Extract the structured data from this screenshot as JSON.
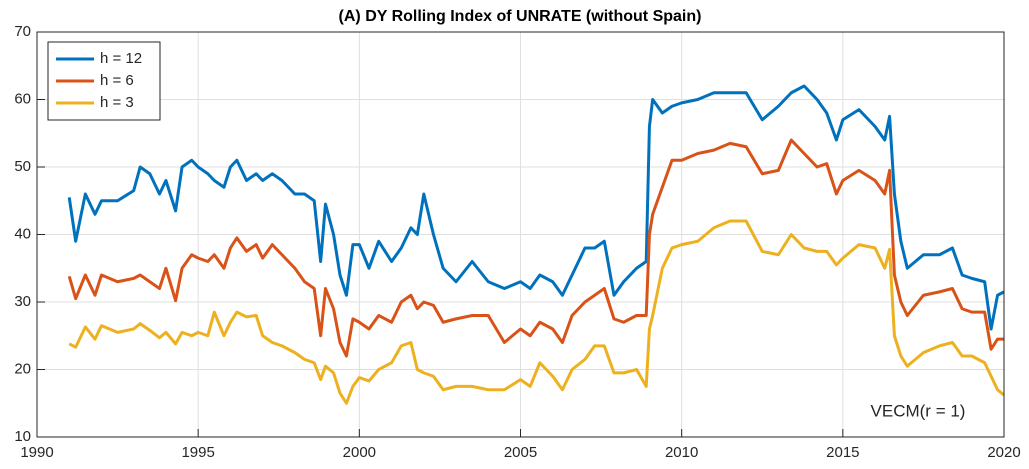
{
  "chart_data": {
    "type": "line",
    "title": "(A) DY Rolling Index of UNRATE (without Spain)",
    "annotation": "VECM(r = 1)",
    "x": [
      1991.0,
      1991.2,
      1991.5,
      1991.8,
      1992.0,
      1992.5,
      1993.0,
      1993.2,
      1993.5,
      1993.8,
      1994.0,
      1994.3,
      1994.5,
      1994.8,
      1995.0,
      1995.3,
      1995.5,
      1995.8,
      1996.0,
      1996.2,
      1996.5,
      1996.8,
      1997.0,
      1997.3,
      1997.6,
      1998.0,
      1998.3,
      1998.6,
      1998.8,
      1998.95,
      1999.2,
      1999.4,
      1999.6,
      1999.8,
      2000.0,
      2000.3,
      2000.6,
      2001.0,
      2001.3,
      2001.6,
      2001.8,
      2002.0,
      2002.3,
      2002.6,
      2003.0,
      2003.5,
      2004.0,
      2004.5,
      2005.0,
      2005.3,
      2005.6,
      2006.0,
      2006.3,
      2006.6,
      2007.0,
      2007.3,
      2007.6,
      2007.9,
      2008.2,
      2008.6,
      2008.9,
      2009.0,
      2009.1,
      2009.4,
      2009.7,
      2010.0,
      2010.5,
      2011.0,
      2011.5,
      2012.0,
      2012.5,
      2013.0,
      2013.4,
      2013.8,
      2014.2,
      2014.5,
      2014.8,
      2015.0,
      2015.5,
      2016.0,
      2016.3,
      2016.45,
      2016.6,
      2016.8,
      2017.0,
      2017.5,
      2018.0,
      2018.4,
      2018.7,
      2019.0,
      2019.4,
      2019.6,
      2019.8,
      2020.0
    ],
    "series": [
      {
        "name": "h = 12",
        "color": "#0072BD",
        "values": [
          45.5,
          39,
          46,
          43,
          45,
          45,
          46.5,
          50,
          49,
          46,
          48,
          43.5,
          50,
          51,
          50,
          49,
          48,
          47,
          50,
          51,
          48,
          49,
          48,
          49,
          48,
          46,
          46,
          45,
          36,
          44.5,
          40,
          34,
          31,
          38.5,
          38.5,
          35,
          39,
          36,
          38,
          41,
          40,
          46,
          40,
          35,
          33,
          36,
          33,
          32,
          33,
          32,
          34,
          33,
          31,
          34,
          38,
          38,
          39,
          31,
          33,
          35,
          36,
          56,
          60,
          58,
          59,
          59.5,
          60,
          61,
          61,
          61,
          57,
          59,
          61,
          62,
          60,
          58,
          54,
          57,
          58.5,
          56,
          54,
          57.5,
          46,
          39,
          35,
          37,
          37,
          38,
          34,
          33.5,
          33,
          26,
          31,
          31.5
        ]
      },
      {
        "name": "h = 6",
        "color": "#D95319",
        "values": [
          33.8,
          30.5,
          34,
          31,
          34,
          33,
          33.5,
          34,
          33,
          32,
          35,
          30.2,
          35,
          37,
          36.5,
          36,
          37,
          35,
          38,
          39.5,
          37.5,
          38.5,
          36.5,
          38.5,
          37,
          35,
          33,
          32,
          25,
          32,
          29,
          24,
          22,
          27.5,
          27,
          26,
          28,
          27,
          30,
          31,
          29,
          30,
          29.5,
          27,
          27.5,
          28,
          28,
          24,
          26,
          25,
          27,
          26,
          24,
          28,
          30,
          31,
          32,
          27.5,
          27,
          28,
          28,
          40,
          43,
          47,
          51,
          51,
          52,
          52.5,
          53.5,
          53,
          49,
          49.5,
          54,
          52,
          50,
          50.5,
          46,
          48,
          49.5,
          48,
          46,
          49.5,
          34,
          30,
          28,
          31,
          31.5,
          32,
          29,
          28.5,
          28.5,
          23,
          24.5,
          24.5
        ]
      },
      {
        "name": "h = 3",
        "color": "#EDB120",
        "values": [
          23.8,
          23.3,
          26.3,
          24.5,
          26.5,
          25.5,
          26,
          26.8,
          25.8,
          24.7,
          25.5,
          23.8,
          25.5,
          25,
          25.5,
          25,
          28.5,
          25,
          27,
          28.5,
          27.8,
          28,
          25,
          24,
          23.5,
          22.5,
          21.5,
          21,
          18.5,
          20.5,
          19.5,
          16.5,
          15,
          17.5,
          18.8,
          18.3,
          20,
          21,
          23.5,
          24,
          20,
          19.5,
          19,
          17,
          17.5,
          17.5,
          17,
          17,
          18.5,
          17.5,
          21,
          19,
          17,
          20,
          21.5,
          23.5,
          23.5,
          19.5,
          19.5,
          20,
          17.5,
          26,
          28,
          35,
          38,
          38.5,
          39,
          41,
          42,
          42,
          37.5,
          37,
          40,
          38,
          37.5,
          37.5,
          35.5,
          36.5,
          38.5,
          38,
          35,
          37.8,
          25,
          22,
          20.5,
          22.5,
          23.5,
          24,
          22,
          22,
          21,
          19,
          17,
          16.2
        ]
      }
    ],
    "xlim": [
      1990,
      2020
    ],
    "xticks": [
      1990,
      1995,
      2000,
      2005,
      2010,
      2015,
      2020
    ],
    "ylim": [
      10,
      70
    ],
    "yticks": [
      10,
      20,
      30,
      40,
      50,
      60,
      70
    ],
    "grid": true,
    "legend": "upper left"
  }
}
